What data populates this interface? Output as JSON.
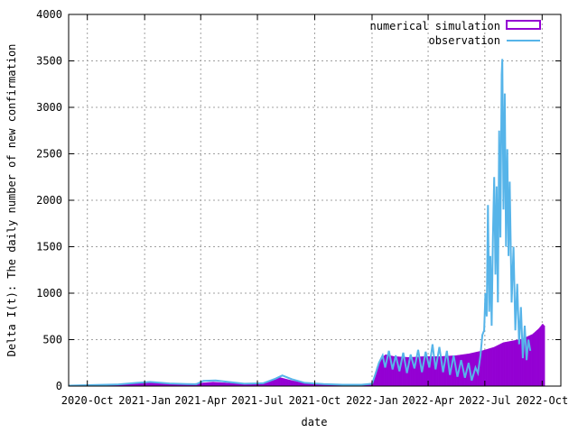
{
  "chart_data": {
    "type": "bar",
    "xlabel": "date",
    "ylabel": "Delta I(t): The daily number of new confirmation",
    "ylim": [
      0,
      4000
    ],
    "xlim": [
      "2020-09-01",
      "2022-10-31"
    ],
    "yticks": [
      0,
      500,
      1000,
      1500,
      2000,
      2500,
      3000,
      3500,
      4000
    ],
    "xticks": [
      {
        "date": "2020-10-01",
        "label": "2020-Oct"
      },
      {
        "date": "2021-01-01",
        "label": "2021-Jan"
      },
      {
        "date": "2021-04-01",
        "label": "2021-Apr"
      },
      {
        "date": "2021-07-01",
        "label": "2021-Jul"
      },
      {
        "date": "2021-10-01",
        "label": "2021-Oct"
      },
      {
        "date": "2022-01-01",
        "label": "2022-Jan"
      },
      {
        "date": "2022-04-01",
        "label": "2022-Apr"
      },
      {
        "date": "2022-07-01",
        "label": "2022-Jul"
      },
      {
        "date": "2022-10-01",
        "label": "2022-Oct"
      }
    ],
    "grid": true,
    "legend_position": "top-right",
    "series": [
      {
        "name": "numerical simulation",
        "style": "bars",
        "color": "#9400d3",
        "points": [
          [
            "2020-09-01",
            8
          ],
          [
            "2020-11-01",
            12
          ],
          [
            "2020-12-15",
            30
          ],
          [
            "2021-01-10",
            38
          ],
          [
            "2021-02-15",
            22
          ],
          [
            "2021-03-20",
            28
          ],
          [
            "2021-04-20",
            45
          ],
          [
            "2021-05-20",
            32
          ],
          [
            "2021-06-20",
            18
          ],
          [
            "2021-07-15",
            35
          ],
          [
            "2021-08-05",
            95
          ],
          [
            "2021-08-25",
            60
          ],
          [
            "2021-09-20",
            25
          ],
          [
            "2021-10-20",
            15
          ],
          [
            "2021-11-20",
            12
          ],
          [
            "2021-12-20",
            15
          ],
          [
            "2022-01-01",
            40
          ],
          [
            "2022-01-08",
            200
          ],
          [
            "2022-01-15",
            300
          ],
          [
            "2022-01-22",
            340
          ],
          [
            "2022-02-05",
            320
          ],
          [
            "2022-03-01",
            310
          ],
          [
            "2022-03-25",
            320
          ],
          [
            "2022-04-20",
            320
          ],
          [
            "2022-05-15",
            330
          ],
          [
            "2022-06-05",
            350
          ],
          [
            "2022-06-25",
            380
          ],
          [
            "2022-07-15",
            420
          ],
          [
            "2022-07-30",
            470
          ],
          [
            "2022-08-15",
            490
          ],
          [
            "2022-08-30",
            510
          ],
          [
            "2022-09-15",
            560
          ],
          [
            "2022-09-25",
            620
          ],
          [
            "2022-10-01",
            670
          ],
          [
            "2022-10-04",
            650
          ]
        ]
      },
      {
        "name": "observation",
        "style": "line",
        "color": "#56b4e9",
        "points": [
          [
            "2020-09-01",
            5
          ],
          [
            "2020-10-15",
            12
          ],
          [
            "2020-11-20",
            18
          ],
          [
            "2020-12-20",
            35
          ],
          [
            "2021-01-10",
            45
          ],
          [
            "2021-02-10",
            28
          ],
          [
            "2021-03-10",
            22
          ],
          [
            "2021-03-25",
            20
          ],
          [
            "2021-04-05",
            55
          ],
          [
            "2021-04-25",
            60
          ],
          [
            "2021-05-15",
            45
          ],
          [
            "2021-06-10",
            25
          ],
          [
            "2021-07-10",
            30
          ],
          [
            "2021-07-30",
            80
          ],
          [
            "2021-08-10",
            115
          ],
          [
            "2021-08-25",
            75
          ],
          [
            "2021-09-15",
            35
          ],
          [
            "2021-10-15",
            22
          ],
          [
            "2021-11-15",
            15
          ],
          [
            "2021-12-15",
            15
          ],
          [
            "2022-01-01",
            25
          ],
          [
            "2022-01-06",
            120
          ],
          [
            "2022-01-12",
            250
          ],
          [
            "2022-01-18",
            330
          ],
          [
            "2022-01-22",
            200
          ],
          [
            "2022-01-28",
            380
          ],
          [
            "2022-02-03",
            180
          ],
          [
            "2022-02-08",
            330
          ],
          [
            "2022-02-14",
            160
          ],
          [
            "2022-02-20",
            360
          ],
          [
            "2022-02-26",
            140
          ],
          [
            "2022-03-04",
            340
          ],
          [
            "2022-03-10",
            190
          ],
          [
            "2022-03-16",
            390
          ],
          [
            "2022-03-22",
            150
          ],
          [
            "2022-03-28",
            370
          ],
          [
            "2022-04-03",
            200
          ],
          [
            "2022-04-08",
            450
          ],
          [
            "2022-04-13",
            180
          ],
          [
            "2022-04-19",
            420
          ],
          [
            "2022-04-25",
            150
          ],
          [
            "2022-05-01",
            380
          ],
          [
            "2022-05-06",
            120
          ],
          [
            "2022-05-12",
            330
          ],
          [
            "2022-05-18",
            100
          ],
          [
            "2022-05-24",
            280
          ],
          [
            "2022-05-30",
            90
          ],
          [
            "2022-06-05",
            250
          ],
          [
            "2022-06-10",
            60
          ],
          [
            "2022-06-16",
            200
          ],
          [
            "2022-06-20",
            140
          ],
          [
            "2022-06-24",
            330
          ],
          [
            "2022-06-27",
            550
          ],
          [
            "2022-06-30",
            600
          ],
          [
            "2022-07-02",
            1000
          ],
          [
            "2022-07-04",
            750
          ],
          [
            "2022-07-06",
            1950
          ],
          [
            "2022-07-08",
            800
          ],
          [
            "2022-07-10",
            1400
          ],
          [
            "2022-07-12",
            650
          ],
          [
            "2022-07-14",
            1600
          ],
          [
            "2022-07-16",
            2250
          ],
          [
            "2022-07-18",
            1200
          ],
          [
            "2022-07-20",
            2150
          ],
          [
            "2022-07-22",
            900
          ],
          [
            "2022-07-24",
            2750
          ],
          [
            "2022-07-26",
            1600
          ],
          [
            "2022-07-28",
            3350
          ],
          [
            "2022-07-29",
            3520
          ],
          [
            "2022-07-31",
            1900
          ],
          [
            "2022-08-02",
            3150
          ],
          [
            "2022-08-04",
            1500
          ],
          [
            "2022-08-06",
            2550
          ],
          [
            "2022-08-08",
            1400
          ],
          [
            "2022-08-10",
            2200
          ],
          [
            "2022-08-13",
            900
          ],
          [
            "2022-08-16",
            1500
          ],
          [
            "2022-08-19",
            600
          ],
          [
            "2022-08-22",
            1100
          ],
          [
            "2022-08-25",
            450
          ],
          [
            "2022-08-28",
            850
          ],
          [
            "2022-08-31",
            300
          ],
          [
            "2022-09-03",
            650
          ],
          [
            "2022-09-06",
            280
          ],
          [
            "2022-09-09",
            500
          ],
          [
            "2022-09-12",
            380
          ]
        ]
      }
    ]
  }
}
